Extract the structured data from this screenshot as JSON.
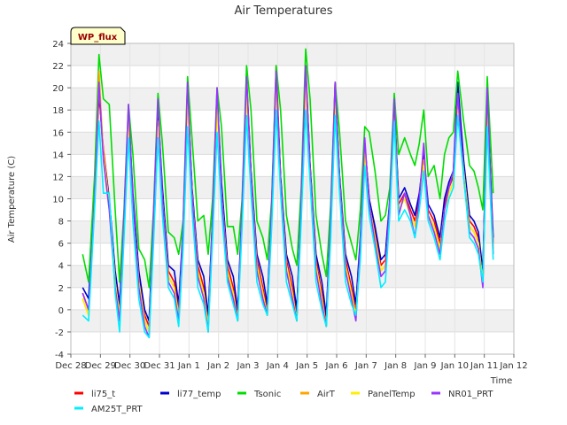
{
  "chart_data": {
    "type": "line",
    "title": "Air Temperatures",
    "xlabel": "Time",
    "ylabel": "Air Temperature (C)",
    "badge": "WP_flux",
    "ylim": [
      -4,
      24
    ],
    "yticks": [
      -4,
      -2,
      0,
      2,
      4,
      6,
      8,
      10,
      12,
      14,
      16,
      18,
      20,
      22,
      24
    ],
    "xlim": [
      0,
      15
    ],
    "xticks": [
      {
        "x": 0,
        "label": "Dec 28"
      },
      {
        "x": 1,
        "label": "Dec 29"
      },
      {
        "x": 2,
        "label": "Dec 30"
      },
      {
        "x": 3,
        "label": "Dec 31"
      },
      {
        "x": 4,
        "label": "Jan 1"
      },
      {
        "x": 5,
        "label": "Jan 2"
      },
      {
        "x": 6,
        "label": "Jan 3"
      },
      {
        "x": 7,
        "label": "Jan 4"
      },
      {
        "x": 8,
        "label": "Jan 5"
      },
      {
        "x": 9,
        "label": "Jan 6"
      },
      {
        "x": 10,
        "label": "Jan 7"
      },
      {
        "x": 11,
        "label": "Jan 8"
      },
      {
        "x": 12,
        "label": "Jan 9"
      },
      {
        "x": 13,
        "label": "Jan 10"
      },
      {
        "x": 14,
        "label": "Jan 11"
      },
      {
        "x": 15,
        "label": "Jan 12"
      }
    ],
    "grid": true,
    "legend_position": "bottom",
    "x": [
      0.4,
      0.6,
      0.8,
      0.95,
      1.1,
      1.3,
      1.5,
      1.65,
      1.8,
      1.95,
      2.1,
      2.3,
      2.5,
      2.65,
      2.8,
      2.95,
      3.1,
      3.3,
      3.5,
      3.65,
      3.8,
      3.95,
      4.1,
      4.3,
      4.5,
      4.65,
      4.8,
      4.95,
      5.1,
      5.3,
      5.5,
      5.65,
      5.8,
      5.95,
      6.1,
      6.3,
      6.5,
      6.65,
      6.8,
      6.95,
      7.1,
      7.3,
      7.5,
      7.65,
      7.8,
      7.95,
      8.1,
      8.3,
      8.5,
      8.65,
      8.8,
      8.95,
      9.1,
      9.3,
      9.5,
      9.65,
      9.8,
      9.95,
      10.1,
      10.3,
      10.5,
      10.65,
      10.8,
      10.95,
      11.1,
      11.3,
      11.5,
      11.65,
      11.8,
      11.95,
      12.1,
      12.3,
      12.5,
      12.65,
      12.8,
      12.95,
      13.1,
      13.3,
      13.5,
      13.65,
      13.8,
      13.95,
      14.1,
      14.3
    ],
    "series": [
      {
        "name": "li75_t",
        "color": "#ff0000",
        "values": [
          1.5,
          0.0,
          10.0,
          19.5,
          14.5,
          10.0,
          3.0,
          0.0,
          8.0,
          18.0,
          10.0,
          3.0,
          -0.5,
          -1.5,
          8.0,
          18.0,
          10.5,
          3.5,
          2.5,
          0.0,
          7.0,
          20.0,
          11.0,
          4.0,
          2.0,
          -1.0,
          8.0,
          19.5,
          11.0,
          4.0,
          2.0,
          -0.5,
          9.0,
          21.0,
          12.5,
          4.5,
          2.0,
          0.0,
          9.0,
          22.0,
          12.0,
          4.5,
          2.0,
          -0.5,
          9.5,
          22.0,
          13.0,
          4.5,
          1.5,
          -1.0,
          8.0,
          20.5,
          12.0,
          4.5,
          2.0,
          0.0,
          6.0,
          15.0,
          10.0,
          7.0,
          4.0,
          4.5,
          9.5,
          19.0,
          9.5,
          10.5,
          9.0,
          8.0,
          10.0,
          14.0,
          9.0,
          8.0,
          6.0,
          9.5,
          11.0,
          12.0,
          19.5,
          13.0,
          8.0,
          7.5,
          6.5,
          3.0,
          19.5,
          6.0
        ]
      },
      {
        "name": "li77_temp",
        "color": "#0000cc",
        "values": [
          2.0,
          1.0,
          10.5,
          20.0,
          14.0,
          10.0,
          3.5,
          0.5,
          8.5,
          18.0,
          10.5,
          3.5,
          0.0,
          -1.0,
          8.5,
          18.0,
          11.0,
          4.0,
          3.5,
          0.5,
          7.5,
          19.5,
          11.0,
          4.5,
          3.0,
          -0.5,
          8.5,
          19.5,
          11.5,
          4.5,
          3.0,
          0.0,
          9.5,
          20.5,
          12.5,
          5.0,
          3.0,
          0.5,
          9.5,
          21.0,
          12.0,
          5.0,
          3.0,
          0.0,
          10.0,
          21.5,
          13.0,
          5.0,
          2.5,
          -0.5,
          8.5,
          20.0,
          12.0,
          5.0,
          3.0,
          0.5,
          6.5,
          15.0,
          10.0,
          7.5,
          4.5,
          5.0,
          10.0,
          18.5,
          10.0,
          11.0,
          9.5,
          8.5,
          10.5,
          14.0,
          9.5,
          8.5,
          6.5,
          10.0,
          11.5,
          12.5,
          20.5,
          13.5,
          8.5,
          8.0,
          7.0,
          3.5,
          19.0,
          6.5
        ]
      },
      {
        "name": "Tsonic",
        "color": "#00dd00",
        "values": [
          5.0,
          2.5,
          12.0,
          23.0,
          19.0,
          18.5,
          9.0,
          2.5,
          9.0,
          18.5,
          14.0,
          5.5,
          4.5,
          2.0,
          9.0,
          19.5,
          15.0,
          7.0,
          6.5,
          5.0,
          8.0,
          21.0,
          15.5,
          8.0,
          8.5,
          5.0,
          10.0,
          20.0,
          16.5,
          7.5,
          7.5,
          5.0,
          10.0,
          22.0,
          18.0,
          8.0,
          6.5,
          4.5,
          10.0,
          22.0,
          18.0,
          8.5,
          5.5,
          4.0,
          11.0,
          23.5,
          19.0,
          8.5,
          5.0,
          3.0,
          9.5,
          20.5,
          16.0,
          8.0,
          6.0,
          4.5,
          9.0,
          16.5,
          16.0,
          12.5,
          8.0,
          8.5,
          11.0,
          19.5,
          14.0,
          15.5,
          14.0,
          13.0,
          15.0,
          18.0,
          12.0,
          13.0,
          10.0,
          14.0,
          15.5,
          16.0,
          21.5,
          17.0,
          13.0,
          12.5,
          11.0,
          9.0,
          21.0,
          10.5
        ]
      },
      {
        "name": "AirT",
        "color": "#ffa500",
        "values": [
          1.0,
          -0.5,
          9.5,
          21.5,
          14.0,
          9.5,
          2.5,
          -0.5,
          7.5,
          17.5,
          9.5,
          2.5,
          -1.0,
          -2.0,
          7.5,
          17.0,
          10.0,
          3.0,
          2.0,
          -0.5,
          6.5,
          19.0,
          10.5,
          3.5,
          1.5,
          -1.5,
          7.5,
          18.5,
          10.5,
          3.5,
          1.5,
          -1.0,
          8.5,
          20.0,
          12.0,
          4.0,
          1.5,
          -0.5,
          8.5,
          20.5,
          11.5,
          4.0,
          1.5,
          -1.0,
          9.0,
          20.5,
          12.5,
          4.0,
          1.0,
          -1.5,
          7.5,
          19.5,
          11.5,
          4.0,
          1.5,
          -0.5,
          5.5,
          14.5,
          9.5,
          6.5,
          3.5,
          4.0,
          9.0,
          18.5,
          9.0,
          10.0,
          8.5,
          7.5,
          9.5,
          13.5,
          8.5,
          7.5,
          5.5,
          9.0,
          10.5,
          11.5,
          18.5,
          12.5,
          7.5,
          7.0,
          6.0,
          2.5,
          18.0,
          5.5
        ]
      },
      {
        "name": "PanelTemp",
        "color": "#ffee00",
        "values": [
          1.0,
          -0.5,
          9.5,
          20.5,
          14.0,
          9.5,
          2.5,
          -0.5,
          7.5,
          17.0,
          9.5,
          2.5,
          -1.0,
          -2.0,
          7.5,
          16.5,
          10.0,
          3.0,
          2.0,
          -0.5,
          6.5,
          18.5,
          10.5,
          3.5,
          1.5,
          -1.5,
          7.5,
          18.0,
          10.5,
          3.5,
          1.5,
          -1.0,
          8.5,
          19.5,
          12.0,
          4.0,
          1.5,
          -0.5,
          8.5,
          20.0,
          11.5,
          4.0,
          1.5,
          -1.0,
          9.0,
          20.0,
          12.5,
          4.0,
          1.0,
          -1.5,
          7.5,
          19.0,
          11.5,
          4.0,
          1.5,
          -0.5,
          5.5,
          14.0,
          9.5,
          6.5,
          3.5,
          4.0,
          9.0,
          18.0,
          9.0,
          10.0,
          8.5,
          7.5,
          9.5,
          13.0,
          8.5,
          7.5,
          5.5,
          9.0,
          10.5,
          11.5,
          18.0,
          12.5,
          7.5,
          7.0,
          6.0,
          2.5,
          17.5,
          5.5
        ]
      },
      {
        "name": "NR01_PRT",
        "color": "#9933ff",
        "values": [
          1.5,
          0.0,
          10.0,
          20.5,
          13.5,
          9.0,
          2.0,
          -1.0,
          8.5,
          18.5,
          10.0,
          2.0,
          -1.5,
          -2.5,
          8.5,
          19.0,
          10.0,
          2.5,
          1.5,
          -1.0,
          7.5,
          20.5,
          10.5,
          3.0,
          1.0,
          -2.0,
          8.5,
          20.0,
          10.5,
          3.0,
          1.0,
          -1.0,
          9.5,
          21.0,
          12.0,
          3.5,
          1.0,
          -0.5,
          9.5,
          21.5,
          11.5,
          3.5,
          1.0,
          -1.0,
          10.0,
          22.0,
          12.5,
          3.5,
          0.5,
          -1.5,
          8.5,
          20.5,
          11.5,
          3.5,
          1.0,
          -1.0,
          6.0,
          15.5,
          9.5,
          6.0,
          3.0,
          3.5,
          10.0,
          19.0,
          8.5,
          10.5,
          8.5,
          6.5,
          10.0,
          15.0,
          8.5,
          7.0,
          5.0,
          9.0,
          11.0,
          12.5,
          19.5,
          12.0,
          7.0,
          6.5,
          5.5,
          2.0,
          20.0,
          5.0
        ]
      },
      {
        "name": "AM25T_PRT",
        "color": "#00eeff",
        "values": [
          -0.5,
          -1.0,
          9.0,
          17.0,
          10.5,
          10.5,
          1.5,
          -2.0,
          6.5,
          15.5,
          8.0,
          1.0,
          -2.0,
          -2.5,
          6.0,
          15.5,
          8.5,
          2.0,
          1.0,
          -1.5,
          5.5,
          16.5,
          9.0,
          2.0,
          0.5,
          -2.0,
          6.5,
          16.0,
          9.0,
          2.5,
          0.5,
          -1.0,
          7.5,
          17.5,
          10.5,
          2.5,
          0.5,
          -0.5,
          7.5,
          18.0,
          10.5,
          2.5,
          0.5,
          -1.0,
          8.0,
          18.0,
          11.5,
          2.5,
          0.0,
          -1.5,
          6.5,
          17.5,
          10.5,
          2.5,
          0.5,
          -0.5,
          4.5,
          13.0,
          8.5,
          5.5,
          2.0,
          2.5,
          8.5,
          17.0,
          8.0,
          9.0,
          8.0,
          6.5,
          9.0,
          12.5,
          8.0,
          6.5,
          4.5,
          8.0,
          10.0,
          11.0,
          17.5,
          12.0,
          6.5,
          6.0,
          5.0,
          2.5,
          16.5,
          4.5
        ]
      }
    ]
  }
}
